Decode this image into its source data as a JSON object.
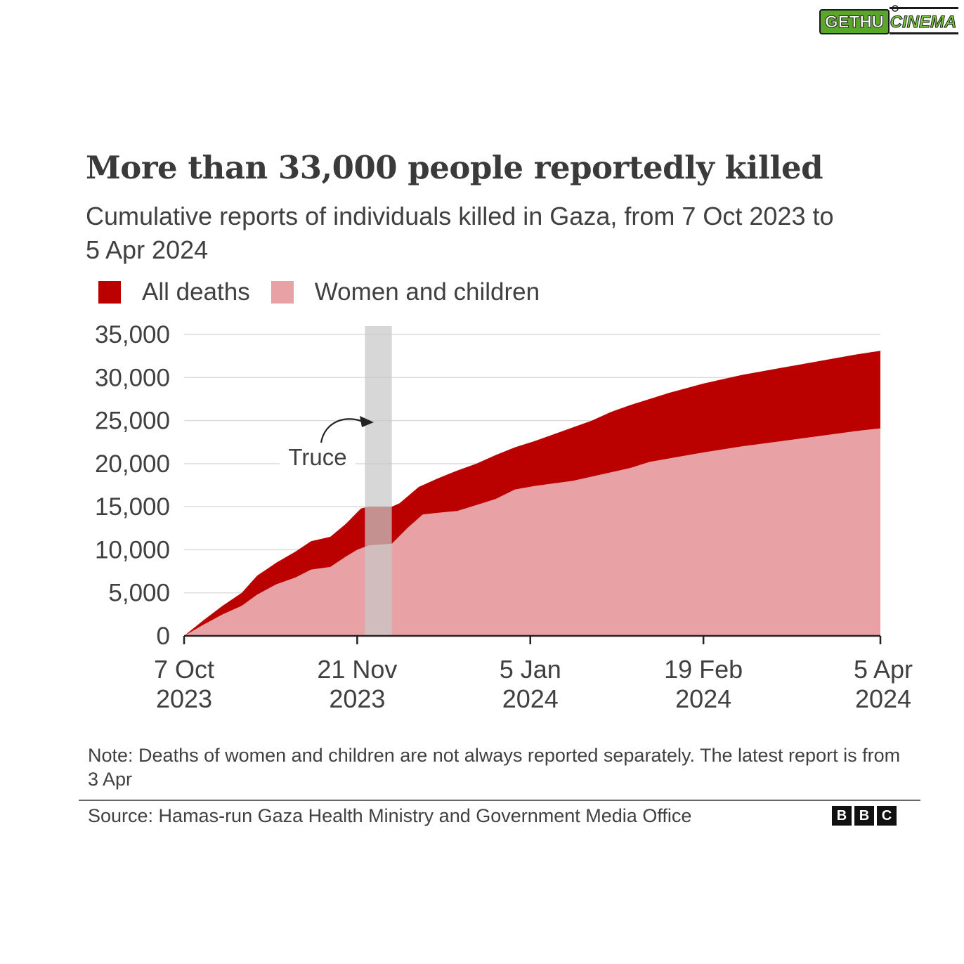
{
  "corner_logo": {
    "text_left": "GETHU",
    "text_right": "CINEMA",
    "colors": {
      "left_bg": "#5aa62a",
      "right_text": "#7ac943",
      "outline": "#1a1a1a"
    }
  },
  "bbc_logo": {
    "letters": [
      "B",
      "B",
      "C"
    ]
  },
  "colors": {
    "all_deaths": "#bb0000",
    "women_children": "#e8a1a4",
    "truce_band": "#c8c8c8",
    "gridline": "#dcdcdc",
    "axis": "#222222",
    "text": "#404040"
  },
  "chart_data": {
    "type": "area",
    "title": "More than 33,000 people reportedly killed",
    "subtitle": "Cumulative reports of individuals killed in Gaza, from 7 Oct 2023 to 5 Apr 2024",
    "legend": [
      {
        "label": "All deaths",
        "color": "#bb0000"
      },
      {
        "label": "Women and children",
        "color": "#e8a1a4"
      }
    ],
    "legend_position": "top-left",
    "grid": true,
    "ylim": [
      0,
      35000
    ],
    "yticks": [
      0,
      5000,
      10000,
      15000,
      20000,
      25000,
      30000,
      35000
    ],
    "ytick_labels": [
      "0",
      "5,000",
      "10,000",
      "15,000",
      "20,000",
      "25,000",
      "30,000",
      "35,000"
    ],
    "xlim": [
      "2023-10-07",
      "2024-04-05"
    ],
    "xticks": [
      {
        "date": "2023-10-07",
        "lines": [
          "7 Oct",
          "2023"
        ]
      },
      {
        "date": "2023-11-21",
        "lines": [
          "21 Nov",
          "2023"
        ]
      },
      {
        "date": "2024-01-05",
        "lines": [
          "5 Jan",
          "2024"
        ]
      },
      {
        "date": "2024-02-19",
        "lines": [
          "19 Feb",
          "2024"
        ]
      },
      {
        "date": "2024-04-05",
        "lines": [
          "5 Apr",
          "2024"
        ]
      }
    ],
    "annotations": [
      {
        "text": "Truce",
        "start": "2023-11-23",
        "end": "2023-11-30"
      }
    ],
    "series": [
      {
        "name": "All deaths",
        "points": [
          [
            "2023-10-07",
            0
          ],
          [
            "2023-10-12",
            1800
          ],
          [
            "2023-10-17",
            3500
          ],
          [
            "2023-10-22",
            5000
          ],
          [
            "2023-10-26",
            7000
          ],
          [
            "2023-10-31",
            8500
          ],
          [
            "2023-11-05",
            9800
          ],
          [
            "2023-11-09",
            11000
          ],
          [
            "2023-11-14",
            11500
          ],
          [
            "2023-11-18",
            13000
          ],
          [
            "2023-11-22",
            14800
          ],
          [
            "2023-11-24",
            15000
          ],
          [
            "2023-11-30",
            15000
          ],
          [
            "2023-12-02",
            15400
          ],
          [
            "2023-12-07",
            17300
          ],
          [
            "2023-12-12",
            18300
          ],
          [
            "2023-12-17",
            19200
          ],
          [
            "2023-12-22",
            20000
          ],
          [
            "2023-12-27",
            21000
          ],
          [
            "2024-01-01",
            21900
          ],
          [
            "2024-01-06",
            22600
          ],
          [
            "2024-01-11",
            23400
          ],
          [
            "2024-01-16",
            24200
          ],
          [
            "2024-01-21",
            25000
          ],
          [
            "2024-01-26",
            26000
          ],
          [
            "2024-01-31",
            26800
          ],
          [
            "2024-02-05",
            27500
          ],
          [
            "2024-02-10",
            28200
          ],
          [
            "2024-02-19",
            29300
          ],
          [
            "2024-02-29",
            30300
          ],
          [
            "2024-03-10",
            31100
          ],
          [
            "2024-03-20",
            31900
          ],
          [
            "2024-03-30",
            32700
          ],
          [
            "2024-04-05",
            33100
          ]
        ]
      },
      {
        "name": "Women and children",
        "points": [
          [
            "2023-10-07",
            0
          ],
          [
            "2023-10-12",
            1300
          ],
          [
            "2023-10-17",
            2500
          ],
          [
            "2023-10-22",
            3500
          ],
          [
            "2023-10-26",
            4800
          ],
          [
            "2023-10-31",
            6000
          ],
          [
            "2023-11-05",
            6800
          ],
          [
            "2023-11-09",
            7700
          ],
          [
            "2023-11-14",
            8000
          ],
          [
            "2023-11-18",
            9200
          ],
          [
            "2023-11-21",
            10000
          ],
          [
            "2023-11-24",
            10500
          ],
          [
            "2023-11-30",
            10700
          ],
          [
            "2023-12-04",
            12500
          ],
          [
            "2023-12-08",
            14100
          ],
          [
            "2023-12-12",
            14300
          ],
          [
            "2023-12-17",
            14500
          ],
          [
            "2023-12-22",
            15200
          ],
          [
            "2023-12-27",
            15900
          ],
          [
            "2024-01-01",
            17000
          ],
          [
            "2024-01-06",
            17400
          ],
          [
            "2024-01-11",
            17700
          ],
          [
            "2024-01-16",
            18000
          ],
          [
            "2024-01-21",
            18500
          ],
          [
            "2024-01-31",
            19500
          ],
          [
            "2024-02-05",
            20200
          ],
          [
            "2024-02-10",
            20600
          ],
          [
            "2024-02-19",
            21300
          ],
          [
            "2024-02-29",
            22000
          ],
          [
            "2024-03-10",
            22600
          ],
          [
            "2024-03-20",
            23200
          ],
          [
            "2024-03-30",
            23800
          ],
          [
            "2024-04-05",
            24100
          ]
        ]
      }
    ]
  },
  "note": "Note: Deaths of women and children are not always reported separately. The latest report is from 3 Apr",
  "source": "Source: Hamas-run Gaza Health Ministry and Government Media Office"
}
